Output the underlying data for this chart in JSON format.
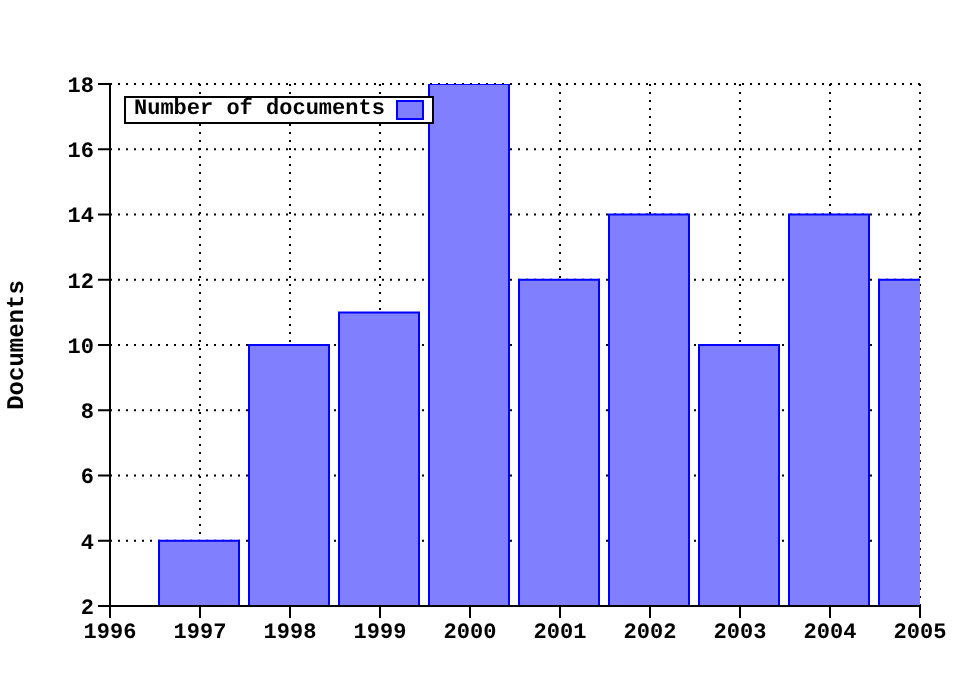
{
  "chart_data": {
    "type": "bar",
    "ylabel": "Documents",
    "x": [
      1997,
      1998,
      1999,
      2000,
      2001,
      2002,
      2003,
      2004,
      2005
    ],
    "series": [
      {
        "name": "Number of documents",
        "color": "#8080ff",
        "values": [
          4,
          10,
          11,
          18,
          12,
          14,
          10,
          14,
          12
        ]
      }
    ],
    "xlim": [
      1996,
      2005
    ],
    "xticks": [
      1996,
      1997,
      1998,
      1999,
      2000,
      2001,
      2002,
      2003,
      2004,
      2005
    ],
    "ylim": [
      2,
      18
    ],
    "yticks": [
      2,
      4,
      6,
      8,
      10,
      12,
      14,
      16,
      18
    ],
    "grid": true,
    "legend": "top left"
  }
}
